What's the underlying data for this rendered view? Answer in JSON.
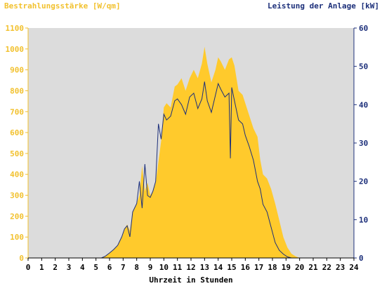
{
  "chart_data": {
    "type": "area",
    "title": "",
    "ylabel_left": "Bestrahlungsstärke [W/qm]",
    "ylabel_right": "Leistung der Anlage [kW]",
    "xlabel": "Uhrzeit in Stunden",
    "ylim_left": [
      0,
      1100
    ],
    "ylim_right": [
      0,
      60
    ],
    "xlim": [
      0,
      24
    ],
    "yticks_left": [
      0,
      100,
      200,
      300,
      400,
      500,
      600,
      700,
      800,
      900,
      1000,
      1100
    ],
    "yticks_right": [
      0,
      10,
      20,
      30,
      40,
      50,
      60
    ],
    "xticks": [
      0,
      1,
      2,
      3,
      4,
      5,
      6,
      7,
      8,
      9,
      10,
      11,
      12,
      13,
      14,
      15,
      16,
      17,
      18,
      19,
      20,
      21,
      22,
      23,
      24
    ],
    "grid": false,
    "colors": {
      "plot_background": "#dcdcdc",
      "irradiance_fill": "#ffca2c",
      "power_line": "#1c2f7a",
      "left_axis": "#f2c12e",
      "right_axis": "#1c2f7a"
    },
    "series": [
      {
        "name": "Bestrahlungsstärke [W/qm]",
        "axis": "left",
        "style": "area",
        "x": [
          0,
          5.4,
          5.7,
          6.0,
          6.3,
          6.6,
          6.9,
          7.1,
          7.3,
          7.5,
          7.7,
          8.0,
          8.2,
          8.4,
          8.6,
          8.8,
          9.0,
          9.2,
          9.4,
          9.6,
          9.8,
          10.0,
          10.2,
          10.5,
          10.8,
          11.0,
          11.3,
          11.6,
          11.9,
          12.2,
          12.5,
          12.8,
          13.0,
          13.2,
          13.5,
          13.8,
          14.0,
          14.2,
          14.5,
          14.8,
          15.0,
          15.2,
          15.5,
          15.8,
          16.0,
          16.3,
          16.6,
          16.9,
          17.1,
          17.3,
          17.6,
          17.9,
          18.2,
          18.5,
          18.8,
          19.1,
          19.4,
          19.7,
          20.0,
          24
        ],
        "values": [
          0,
          0,
          10,
          25,
          40,
          60,
          100,
          140,
          160,
          130,
          220,
          260,
          300,
          440,
          320,
          360,
          300,
          320,
          360,
          460,
          560,
          720,
          740,
          720,
          820,
          830,
          860,
          800,
          860,
          900,
          860,
          930,
          1010,
          930,
          840,
          900,
          960,
          940,
          900,
          950,
          960,
          920,
          800,
          780,
          740,
          680,
          620,
          580,
          470,
          400,
          380,
          330,
          260,
          180,
          100,
          50,
          20,
          8,
          0,
          0
        ]
      },
      {
        "name": "Leistung der Anlage [kW]",
        "axis": "right",
        "style": "line",
        "x": [
          0,
          5.4,
          5.7,
          6.0,
          6.3,
          6.6,
          6.9,
          7.1,
          7.3,
          7.5,
          7.7,
          8.0,
          8.2,
          8.4,
          8.6,
          8.8,
          9.0,
          9.2,
          9.4,
          9.6,
          9.8,
          10.0,
          10.2,
          10.5,
          10.8,
          11.0,
          11.3,
          11.6,
          11.9,
          12.2,
          12.5,
          12.8,
          13.0,
          13.2,
          13.5,
          13.8,
          14.0,
          14.2,
          14.5,
          14.8,
          14.9,
          15.0,
          15.2,
          15.5,
          15.8,
          16.0,
          16.3,
          16.6,
          16.9,
          17.1,
          17.3,
          17.6,
          17.9,
          18.2,
          18.5,
          18.8,
          19.1,
          19.4,
          19.7,
          20.0,
          24
        ],
        "values": [
          0,
          0,
          0.5,
          1.3,
          2.2,
          3.3,
          5.5,
          7.6,
          8.4,
          5.5,
          12,
          14.2,
          20,
          13,
          24.5,
          16.3,
          15.8,
          17.5,
          20,
          35,
          31,
          37.5,
          36,
          37,
          41,
          41.5,
          40,
          37.5,
          42,
          43,
          39,
          41.5,
          46,
          41,
          38,
          42.5,
          45.5,
          44,
          42,
          43,
          26,
          44.5,
          41,
          36,
          35,
          32,
          29,
          25.5,
          20,
          18,
          14,
          12,
          8,
          4,
          2,
          1,
          0.3,
          0,
          0,
          0,
          0
        ]
      }
    ]
  }
}
